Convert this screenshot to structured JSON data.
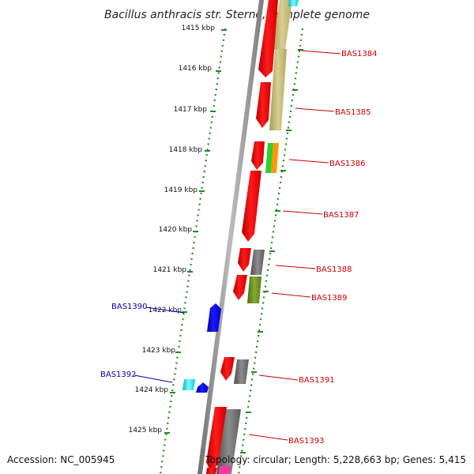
{
  "title": "Bacillus anthracis str. Sterne, complete genome",
  "ticks": [
    "1415 kbp",
    "1416 kbp",
    "1417 kbp",
    "1418 kbp",
    "1419 kbp",
    "1420 kbp",
    "1421 kbp",
    "1422 kbp",
    "1423 kbp",
    "1424 kbp",
    "1425 kbp"
  ],
  "gene_labels": [
    {
      "name": "BAS1384",
      "color": "#cc0000"
    },
    {
      "name": "BAS1385",
      "color": "#cc0000"
    },
    {
      "name": "BAS1386",
      "color": "#cc0000"
    },
    {
      "name": "BAS1387",
      "color": "#cc0000"
    },
    {
      "name": "BAS1388",
      "color": "#cc0000"
    },
    {
      "name": "BAS1389",
      "color": "#cc0000"
    },
    {
      "name": "BAS1390",
      "color": "#0000aa"
    },
    {
      "name": "BAS1391",
      "color": "#cc0000"
    },
    {
      "name": "BAS1392",
      "color": "#0000aa"
    },
    {
      "name": "BAS1393",
      "color": "#cc0000"
    }
  ],
  "colors": {
    "cds_forward": "#ee0000",
    "cds_reverse": "#0000ee",
    "backbone": "#888888",
    "ticks": "#228b22",
    "cog_tan": "#c8be78",
    "cog_gray": "#707070",
    "cog_olive": "#6b8e23",
    "cog_green": "#32cd32",
    "cog_orange": "#ff9900",
    "cog_cyan": "#00e5ee",
    "cog_magenta": "#ff33aa"
  },
  "footer": {
    "accession": "Accession: NC_005945",
    "topology": "Topology: circular; Length: 5,228,663 bp; Genes: 5,415"
  }
}
